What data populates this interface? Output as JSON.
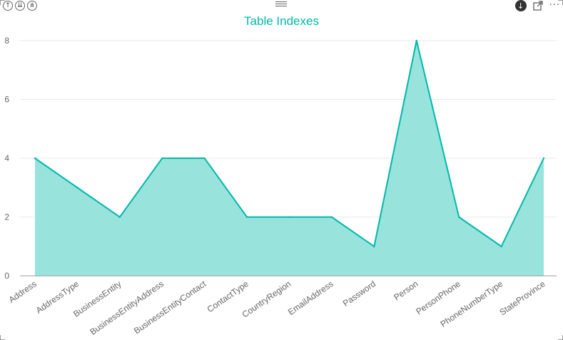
{
  "toolbar": {
    "left_buttons": [
      {
        "name": "drill-up-icon",
        "glyph": "↑"
      },
      {
        "name": "expand-all-down-icon",
        "glyph": "⇊"
      },
      {
        "name": "drill-hierarchy-icon",
        "glyph": "⋔"
      }
    ],
    "download_glyph": "↓",
    "more_glyph": "···"
  },
  "chart_data": {
    "type": "area",
    "title": "Table Indexes",
    "xlabel": "",
    "ylabel": "",
    "categories": [
      "Address",
      "AddressType",
      "BusinessEntity",
      "BusinessEntityAddress",
      "BusinessEntityContact",
      "ContactType",
      "CountryRegion",
      "EmailAddress",
      "Password",
      "Person",
      "PersonPhone",
      "PhoneNumberType",
      "StateProvince"
    ],
    "series": [
      {
        "values": [
          4,
          3,
          2,
          4,
          4,
          2,
          2,
          2,
          1,
          8,
          2,
          1,
          4
        ]
      }
    ],
    "ylim": [
      0,
      8
    ],
    "yticks": [
      0,
      2,
      4,
      6,
      8
    ],
    "grid": true,
    "colors": {
      "line": "#01b8aa",
      "fill": "#99e3dd",
      "grid": "#e8e8e8",
      "axis": "#999999",
      "title": "#01b8aa"
    }
  }
}
